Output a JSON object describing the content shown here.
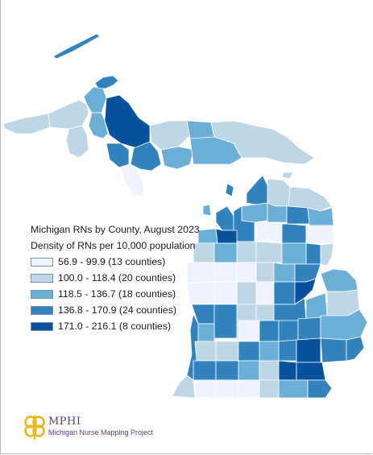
{
  "title": "Michigan RNs by County, August 2023",
  "subtitle": "Density of RNs per 10,000 population",
  "legend": [
    {
      "label": "56.9 - 99.9 (13 counties)",
      "color": "#eff3ff"
    },
    {
      "label": "100.0 - 118.4 (20 counties)",
      "color": "#bdd7e7"
    },
    {
      "label": "118.5 - 136.7 (18 counties)",
      "color": "#6baed6"
    },
    {
      "label": "136.8 - 170.9 (24 counties)",
      "color": "#3182bd"
    },
    {
      "label": "171.0 - 216.1 (8 counties)",
      "color": "#08519c"
    }
  ],
  "logo": {
    "name": "MPHI",
    "subtitle": "Michigan Nurse Mapping Project"
  },
  "colors": {
    "county_border": "#ffffff",
    "logo_gold": "#e8b820",
    "logo_purple": "#5a3b7a"
  }
}
